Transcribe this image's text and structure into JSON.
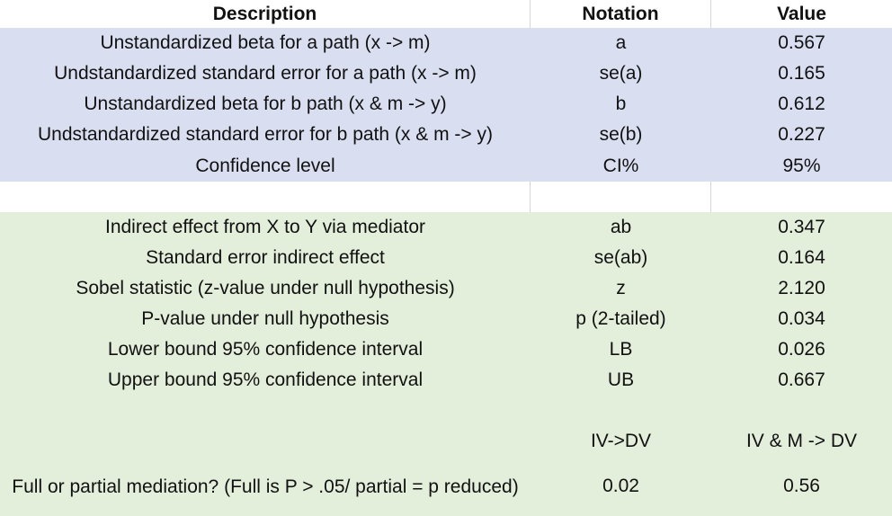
{
  "table": {
    "headers": {
      "description": "Description",
      "notation": "Notation",
      "value": "Value"
    },
    "inputs": [
      {
        "description": "Unstandardized beta for a path (x -> m)",
        "notation": "a",
        "value": "0.567"
      },
      {
        "description": "Undstandardized standard error for a path (x -> m)",
        "notation": "se(a)",
        "value": "0.165"
      },
      {
        "description": "Unstandardized beta for b path (x & m -> y)",
        "notation": "b",
        "value": "0.612"
      },
      {
        "description": "Undstandardized standard error for b path (x & m -> y)",
        "notation": "se(b)",
        "value": "0.227"
      },
      {
        "description": "Confidence level",
        "notation": "CI%",
        "value": "95%"
      }
    ],
    "results": [
      {
        "description": "Indirect effect from X to Y via mediator",
        "notation": "ab",
        "value": "0.347"
      },
      {
        "description": "Standard error indirect effect",
        "notation": "se(ab)",
        "value": "0.164"
      },
      {
        "description": "Sobel statistic (z-value under null hypothesis)",
        "notation": "z",
        "value": "2.120"
      },
      {
        "description": "P-value under null hypothesis",
        "notation": "p (2-tailed)",
        "value": "0.034"
      },
      {
        "description": "Lower bound 95% confidence interval",
        "notation": "LB",
        "value": "0.026"
      },
      {
        "description": "Upper bound 95% confidence interval",
        "notation": "UB",
        "value": "0.667"
      }
    ],
    "mediation": {
      "col2_header": "IV->DV",
      "col3_header": "IV & M -> DV",
      "question": "Full or partial mediation? (Full is P > .05/ partial = p reduced)",
      "iv_dv": "0.02",
      "iv_m_dv": "0.56"
    }
  },
  "colors": {
    "input_fill": "#d9dff1",
    "result_fill": "#e3eedb",
    "gridline": "#d6d6d6"
  }
}
